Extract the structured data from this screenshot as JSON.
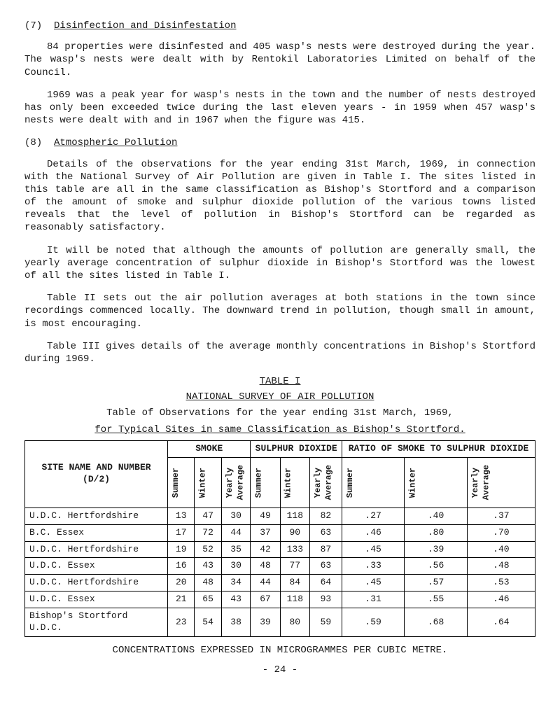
{
  "sections": {
    "s7": {
      "num": "(7)",
      "title": "Disinfection and Disinfestation",
      "p1": "84 properties were disinfested and 405 wasp's nests were destroyed during the year. The wasp's nests were dealt with by Rentokil Laboratories Limited on behalf of the Council.",
      "p2": "1969 was a peak year for wasp's nests in the town and the number of nests destroyed has only been exceeded twice during the last eleven years - in 1959 when 457 wasp's nests were dealt with and in 1967 when the figure was 415."
    },
    "s8": {
      "num": "(8)",
      "title": "Atmospheric Pollution",
      "p1": "Details of the observations for the year ending 31st March, 1969, in connection with the National Survey of Air Pollution are given in Table I. The sites listed in this table are all in the same classification as Bishop's Stortford and a comparison of the amount of smoke and sulphur dioxide pollution of the various towns listed reveals that the level of pollution in Bishop's Stortford can be regarded as reasonably satisfactory.",
      "p2": "It will be noted that although the amounts of pollution are generally small, the yearly average concentration of sulphur dioxide in Bishop's Stortford was the lowest of all the sites listed in Table I.",
      "p3": "Table II sets out the air pollution averages at both stations in the town since recordings commenced locally. The downward trend in pollution, though small in amount, is most encouraging.",
      "p4": "Table III gives details of the average monthly concentrations in Bishop's Stortford during 1969."
    }
  },
  "table": {
    "title1": "TABLE I",
    "title2": "NATIONAL SURVEY OF AIR POLLUTION",
    "subtitle1": "Table of Observations for the year ending 31st March, 1969,",
    "subtitle2": "for Typical Sites in same Classification as Bishop's Stortford.",
    "headers": {
      "site": "SITE NAME AND NUMBER (D/2)",
      "smoke": "SMOKE",
      "sulphur": "SULPHUR DIOXIDE",
      "ratio": "RATIO OF SMOKE TO SULPHUR DIOXIDE",
      "summer": "Summer",
      "winter": "Winter",
      "yearly": "Yearly Average"
    },
    "rows": [
      {
        "site": "U.D.C. Hertfordshire",
        "smoke": [
          "13",
          "47",
          "30"
        ],
        "so2": [
          "49",
          "118",
          "82"
        ],
        "ratio": [
          ".27",
          ".40",
          ".37"
        ]
      },
      {
        "site": "B.C. Essex",
        "smoke": [
          "17",
          "72",
          "44"
        ],
        "so2": [
          "37",
          "90",
          "63"
        ],
        "ratio": [
          ".46",
          ".80",
          ".70"
        ]
      },
      {
        "site": "U.D.C. Hertfordshire",
        "smoke": [
          "19",
          "52",
          "35"
        ],
        "so2": [
          "42",
          "133",
          "87"
        ],
        "ratio": [
          ".45",
          ".39",
          ".40"
        ]
      },
      {
        "site": "U.D.C. Essex",
        "smoke": [
          "16",
          "43",
          "30"
        ],
        "so2": [
          "48",
          "77",
          "63"
        ],
        "ratio": [
          ".33",
          ".56",
          ".48"
        ]
      },
      {
        "site": "U.D.C. Hertfordshire",
        "smoke": [
          "20",
          "48",
          "34"
        ],
        "so2": [
          "44",
          "84",
          "64"
        ],
        "ratio": [
          ".45",
          ".57",
          ".53"
        ]
      },
      {
        "site": "U.D.C. Essex",
        "smoke": [
          "21",
          "65",
          "43"
        ],
        "so2": [
          "67",
          "118",
          "93"
        ],
        "ratio": [
          ".31",
          ".55",
          ".46"
        ]
      },
      {
        "site": "Bishop's Stortford U.D.C.",
        "smoke": [
          "23",
          "54",
          "38"
        ],
        "so2": [
          "39",
          "80",
          "59"
        ],
        "ratio": [
          ".59",
          ".68",
          ".64"
        ]
      }
    ],
    "caption": "CONCENTRATIONS EXPRESSED IN MICROGRAMMES PER CUBIC METRE."
  },
  "page_num": "- 24 -"
}
